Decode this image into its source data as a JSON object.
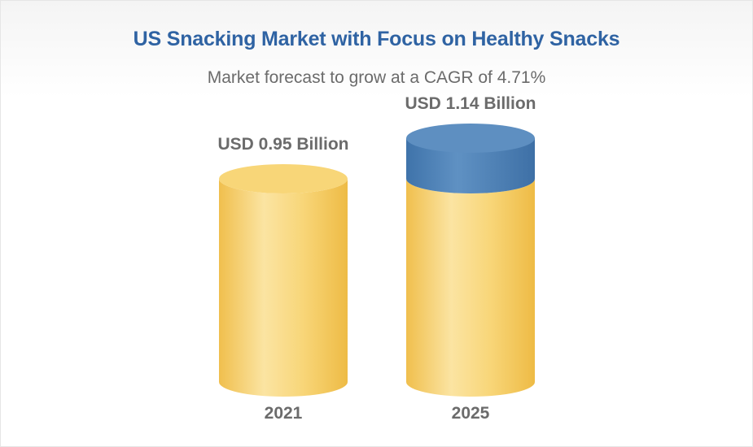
{
  "chart_data": {
    "type": "bar",
    "title": "US Snacking Market with Focus on Healthy Snacks",
    "subtitle": "Market forecast to grow at a CAGR of 4.71%",
    "categories": [
      "2021",
      "2025"
    ],
    "values": [
      0.95,
      1.14
    ],
    "value_labels": [
      "USD 0.95 Billion",
      "USD 1.14 Billion"
    ],
    "unit": "USD Billion",
    "segments_2025": {
      "base": 0.95,
      "growth": 0.19
    },
    "colors": {
      "bar": "#f5c85a",
      "bar_light": "#fbe3a0",
      "bar_top": "#f8d678",
      "growth": "#4f82b6",
      "growth_light": "#7aa4cf",
      "growth_top": "#5e8fc1",
      "title": "#2f63a3",
      "label": "#6b6b6b"
    },
    "grid": false,
    "legend": "none"
  }
}
